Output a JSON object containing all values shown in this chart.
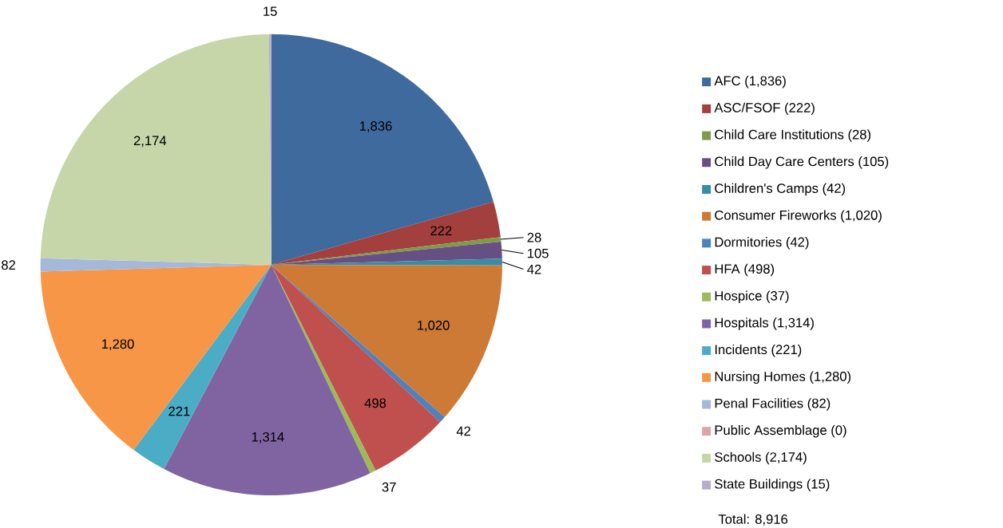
{
  "chart_data": {
    "type": "pie",
    "categories": [
      "AFC (1,836)",
      "ASC/FSOF (222)",
      "Child Care Institutions (28)",
      "Child Day Care Centers (105)",
      "Children's Camps (42)",
      "Consumer Fireworks (1,020)",
      "Dormitories (42)",
      "HFA (498)",
      "Hospice (37)",
      "Hospitals (1,314)",
      "Incidents (221)",
      "Nursing Homes (1,280)",
      "Penal Facilities (82)",
      "Public Assemblage (0)",
      "Schools (2,174)",
      "State Buildings (15)"
    ],
    "values": [
      1836,
      222,
      28,
      105,
      42,
      1020,
      42,
      498,
      37,
      1314,
      221,
      1280,
      82,
      0,
      2174,
      15
    ],
    "colors": [
      "#3f6a9e",
      "#a33f3c",
      "#7f9a48",
      "#664f83",
      "#3a8ca2",
      "#cc7a35",
      "#4f81bd",
      "#c0504d",
      "#9bbb59",
      "#8064a2",
      "#4bacc6",
      "#f79646",
      "#a5b8d9",
      "#dda6a5",
      "#c6d6a9",
      "#b8accb"
    ],
    "value_labels": [
      "1,836",
      "222",
      "28",
      "105",
      "42",
      "1,020",
      "42",
      "498",
      "37",
      "1,314",
      "221",
      "1,280",
      "82",
      null,
      "2,174",
      "15"
    ],
    "legend": "right",
    "annotations": [
      "Total:  8,916"
    ]
  }
}
